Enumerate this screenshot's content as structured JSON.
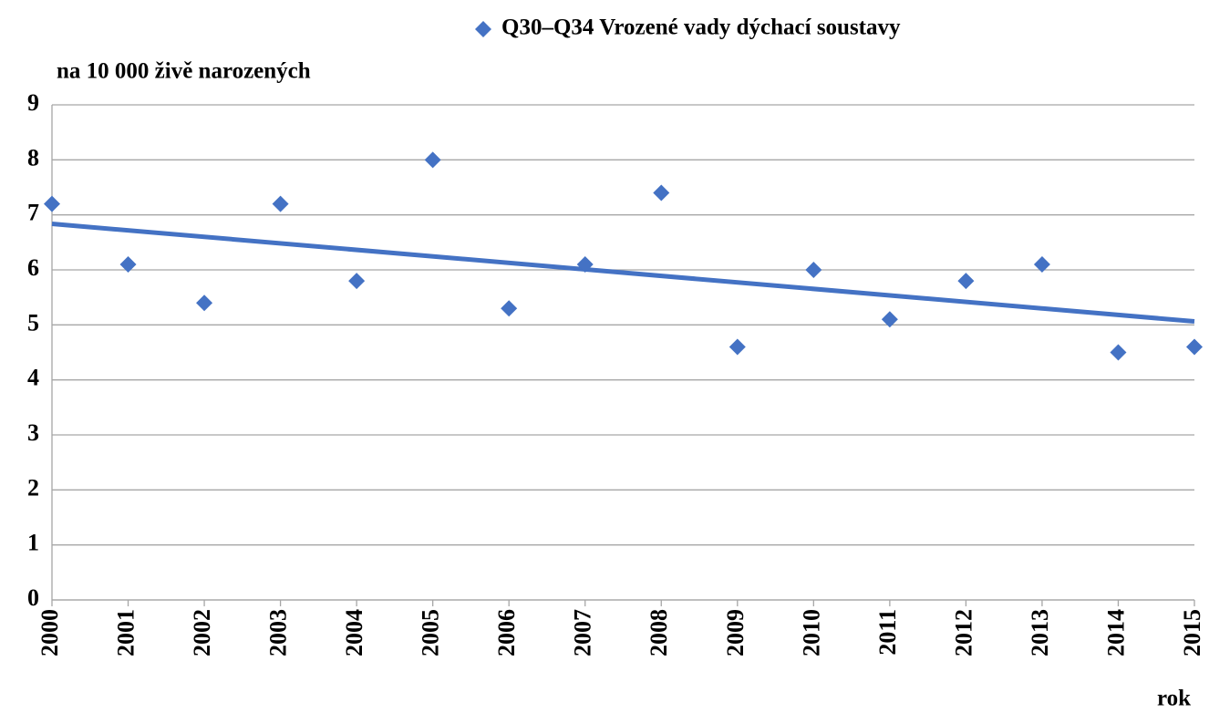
{
  "chart_data": {
    "type": "scatter",
    "y_label": "na 10 000 živě narozených",
    "x_label": "rok",
    "x": [
      2000,
      2001,
      2002,
      2003,
      2004,
      2005,
      2006,
      2007,
      2008,
      2009,
      2010,
      2011,
      2012,
      2013,
      2014,
      2015
    ],
    "series": [
      {
        "name": "Q30–Q34 Vrozené vady dýchací soustavy",
        "color": "#4472c4",
        "values": [
          7.2,
          6.1,
          5.4,
          7.2,
          5.8,
          8.0,
          5.3,
          6.1,
          7.4,
          4.6,
          6.0,
          5.1,
          5.8,
          6.1,
          4.5,
          4.6
        ]
      }
    ],
    "trendline": "linear",
    "xlim": [
      2000,
      2015
    ],
    "xticks": [
      2000,
      2001,
      2002,
      2003,
      2004,
      2005,
      2006,
      2007,
      2008,
      2009,
      2010,
      2011,
      2012,
      2013,
      2014,
      2015
    ],
    "ylim": [
      0,
      9
    ],
    "yticks": [
      0,
      1,
      2,
      3,
      4,
      5,
      6,
      7,
      8,
      9
    ],
    "grid": true,
    "legend": "top"
  }
}
